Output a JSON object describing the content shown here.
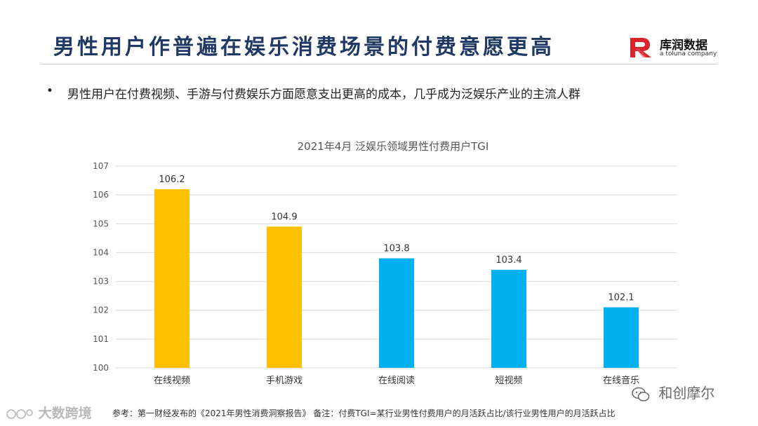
{
  "header": {
    "title": "男性用户作普遍在娱乐消费场景的付费意愿更高",
    "logo_name": "库润数据",
    "logo_sub": "a toluna company"
  },
  "bullet": {
    "marker": "•",
    "text": "男性用户在付费视频、手游与付费娱乐方面愿意支出更高的成本，几乎成为泛娱乐产业的主流人群"
  },
  "chart_data": {
    "type": "bar",
    "title": "2021年4月  泛娱乐领域男性付费用户TGI",
    "categories": [
      "在线视频",
      "手机游戏",
      "在线阅读",
      "短视频",
      "在线音乐"
    ],
    "values": [
      106.2,
      104.9,
      103.8,
      103.4,
      102.1
    ],
    "value_labels": [
      "106.2",
      "104.9",
      "103.8",
      "103.4",
      "102.1"
    ],
    "bar_colors": [
      "#ffc000",
      "#ffc000",
      "#00b0f0",
      "#00b0f0",
      "#00b0f0"
    ],
    "ylim": [
      100,
      107
    ],
    "yticks": [
      "100",
      "101",
      "102",
      "103",
      "104",
      "105",
      "106",
      "107"
    ],
    "grid": true,
    "xlabel": "",
    "ylabel": ""
  },
  "footnote": "参考：第一财经发布的《2021年男性消费洞察报告》 备注：付费TGI=某行业男性付费用户的月活跃占比/该行业男性用户的月活跃占比",
  "watermarks": {
    "left": "大数跨境",
    "right": "和创摩尔"
  },
  "colors": {
    "title": "#1f3864",
    "logo_red": "#d9232d",
    "yellow": "#ffc000",
    "blue": "#00b0f0"
  }
}
